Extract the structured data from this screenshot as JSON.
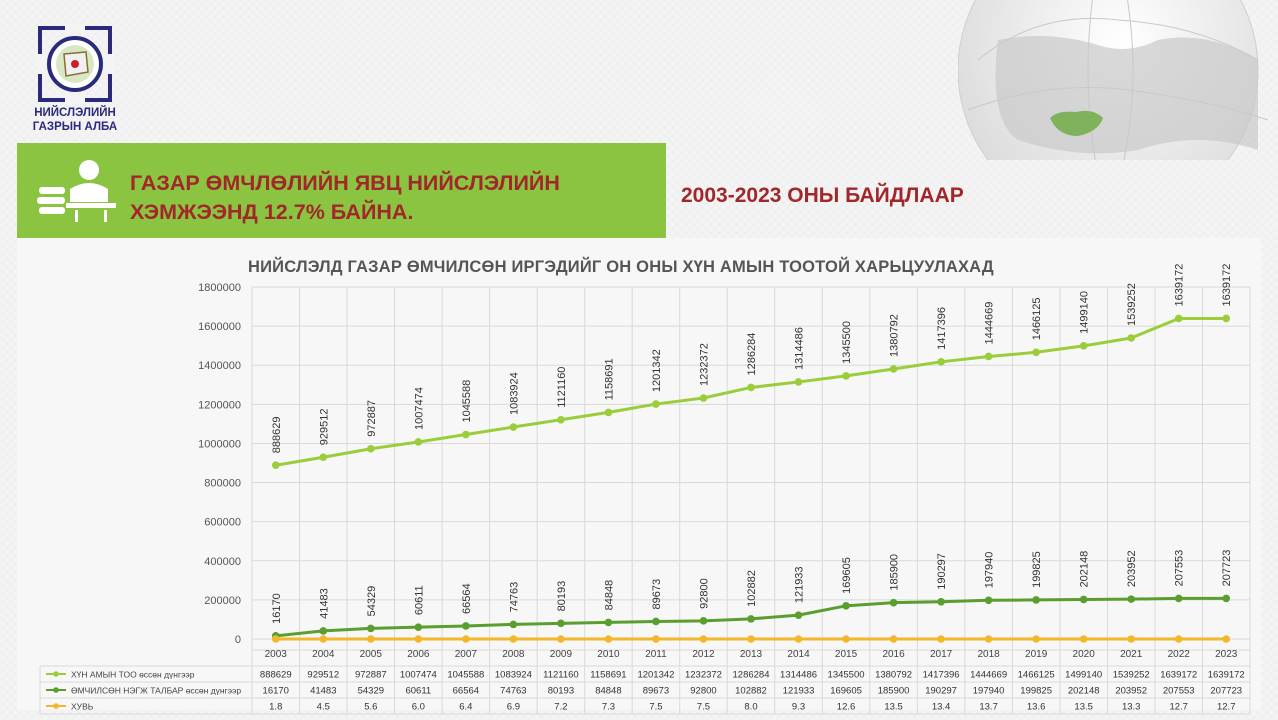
{
  "logo": {
    "line1": "НИЙСЛЭЛИЙН",
    "line2": "ГАЗРЫН АЛБА"
  },
  "banner": {
    "title_line1": "ГАЗАР ӨМЧЛӨЛИЙН ЯВЦ НИЙСЛЭЛИЙН",
    "title_line2": "ХЭМЖЭЭНД 12.7% БАЙНА.",
    "icon": "reading-person-icon",
    "color": "#8ac441",
    "text_color": "#a2272a"
  },
  "subtitle": "2003-2023 ОНЫ БАЙДЛААР",
  "chart_data": {
    "type": "line",
    "title": "НИЙСЛЭЛД ГАЗАР ӨМЧИЛСӨН ИРГЭДИЙГ ОН ОНЫ ХҮН АМЫН ТООТОЙ ХАРЬЦУУЛАХАД",
    "categories": [
      "2003",
      "2004",
      "2005",
      "2006",
      "2007",
      "2008",
      "2009",
      "2010",
      "2011",
      "2012",
      "2013",
      "2014",
      "2015",
      "2016",
      "2017",
      "2018",
      "2019",
      "2020",
      "2021",
      "2022",
      "2023"
    ],
    "ylim": [
      0,
      1800000
    ],
    "yticks": [
      "1800000",
      "1600000",
      "1400000",
      "1200000",
      "1000000",
      "800000",
      "600000",
      "400000",
      "200000",
      "0"
    ],
    "grid": true,
    "legend": "data-table-bottom",
    "series": [
      {
        "name": "ХҮН АМЫН ТОО өссөн дүнгээр",
        "color": "#9acd3a",
        "values": [
          888629,
          929512,
          972887,
          1007474,
          1045588,
          1083924,
          1121160,
          1158691,
          1201342,
          1232372,
          1286284,
          1314486,
          1345500,
          1380792,
          1417396,
          1444669,
          1466125,
          1499140,
          1539252,
          1639172,
          1639172
        ],
        "labels": [
          "888629",
          "929512",
          "972887",
          "1007474",
          "1045588",
          "1083924",
          "1121160",
          "1158691",
          "1201342",
          "1232372",
          "1286284",
          "1314486",
          "1345500",
          "1380792",
          "1417396",
          "1444669",
          "1466125",
          "1499140",
          "1539252",
          "1639172",
          "1639172"
        ]
      },
      {
        "name": "ӨМЧИЛСӨН НЭГЖ ТАЛБАР өссөн дүнгээр",
        "color": "#5a9e2f",
        "values": [
          16170,
          41483,
          54329,
          60611,
          66564,
          74763,
          80193,
          84848,
          89673,
          92800,
          102882,
          121933,
          169605,
          185900,
          190297,
          197940,
          199825,
          202148,
          203952,
          207553,
          207723
        ],
        "labels": [
          "16170",
          "41483",
          "54329",
          "60611",
          "66564",
          "74763",
          "80193",
          "84848",
          "89673",
          "92800",
          "102882",
          "121933",
          "169605",
          "185900",
          "190297",
          "197940",
          "199825",
          "202148",
          "203952",
          "207553",
          "207723"
        ]
      },
      {
        "name": "ХУВЬ",
        "color": "#f2b72a",
        "values": [
          1.8,
          4.5,
          5.6,
          6.0,
          6.4,
          6.9,
          7.2,
          7.3,
          7.5,
          7.5,
          8.0,
          9.3,
          12.6,
          13.5,
          13.4,
          13.7,
          13.6,
          13.5,
          13.3,
          12.7,
          12.7
        ],
        "labels": [
          "1.8",
          "4.5",
          "5.6",
          "6.0",
          "6.4",
          "6.9",
          "7.2",
          "7.3",
          "7.5",
          "7.5",
          "8.0",
          "9.3",
          "12.6",
          "13.5",
          "13.4",
          "13.7",
          "13.6",
          "13.5",
          "13.3",
          "12.7",
          "12.7"
        ]
      }
    ]
  }
}
